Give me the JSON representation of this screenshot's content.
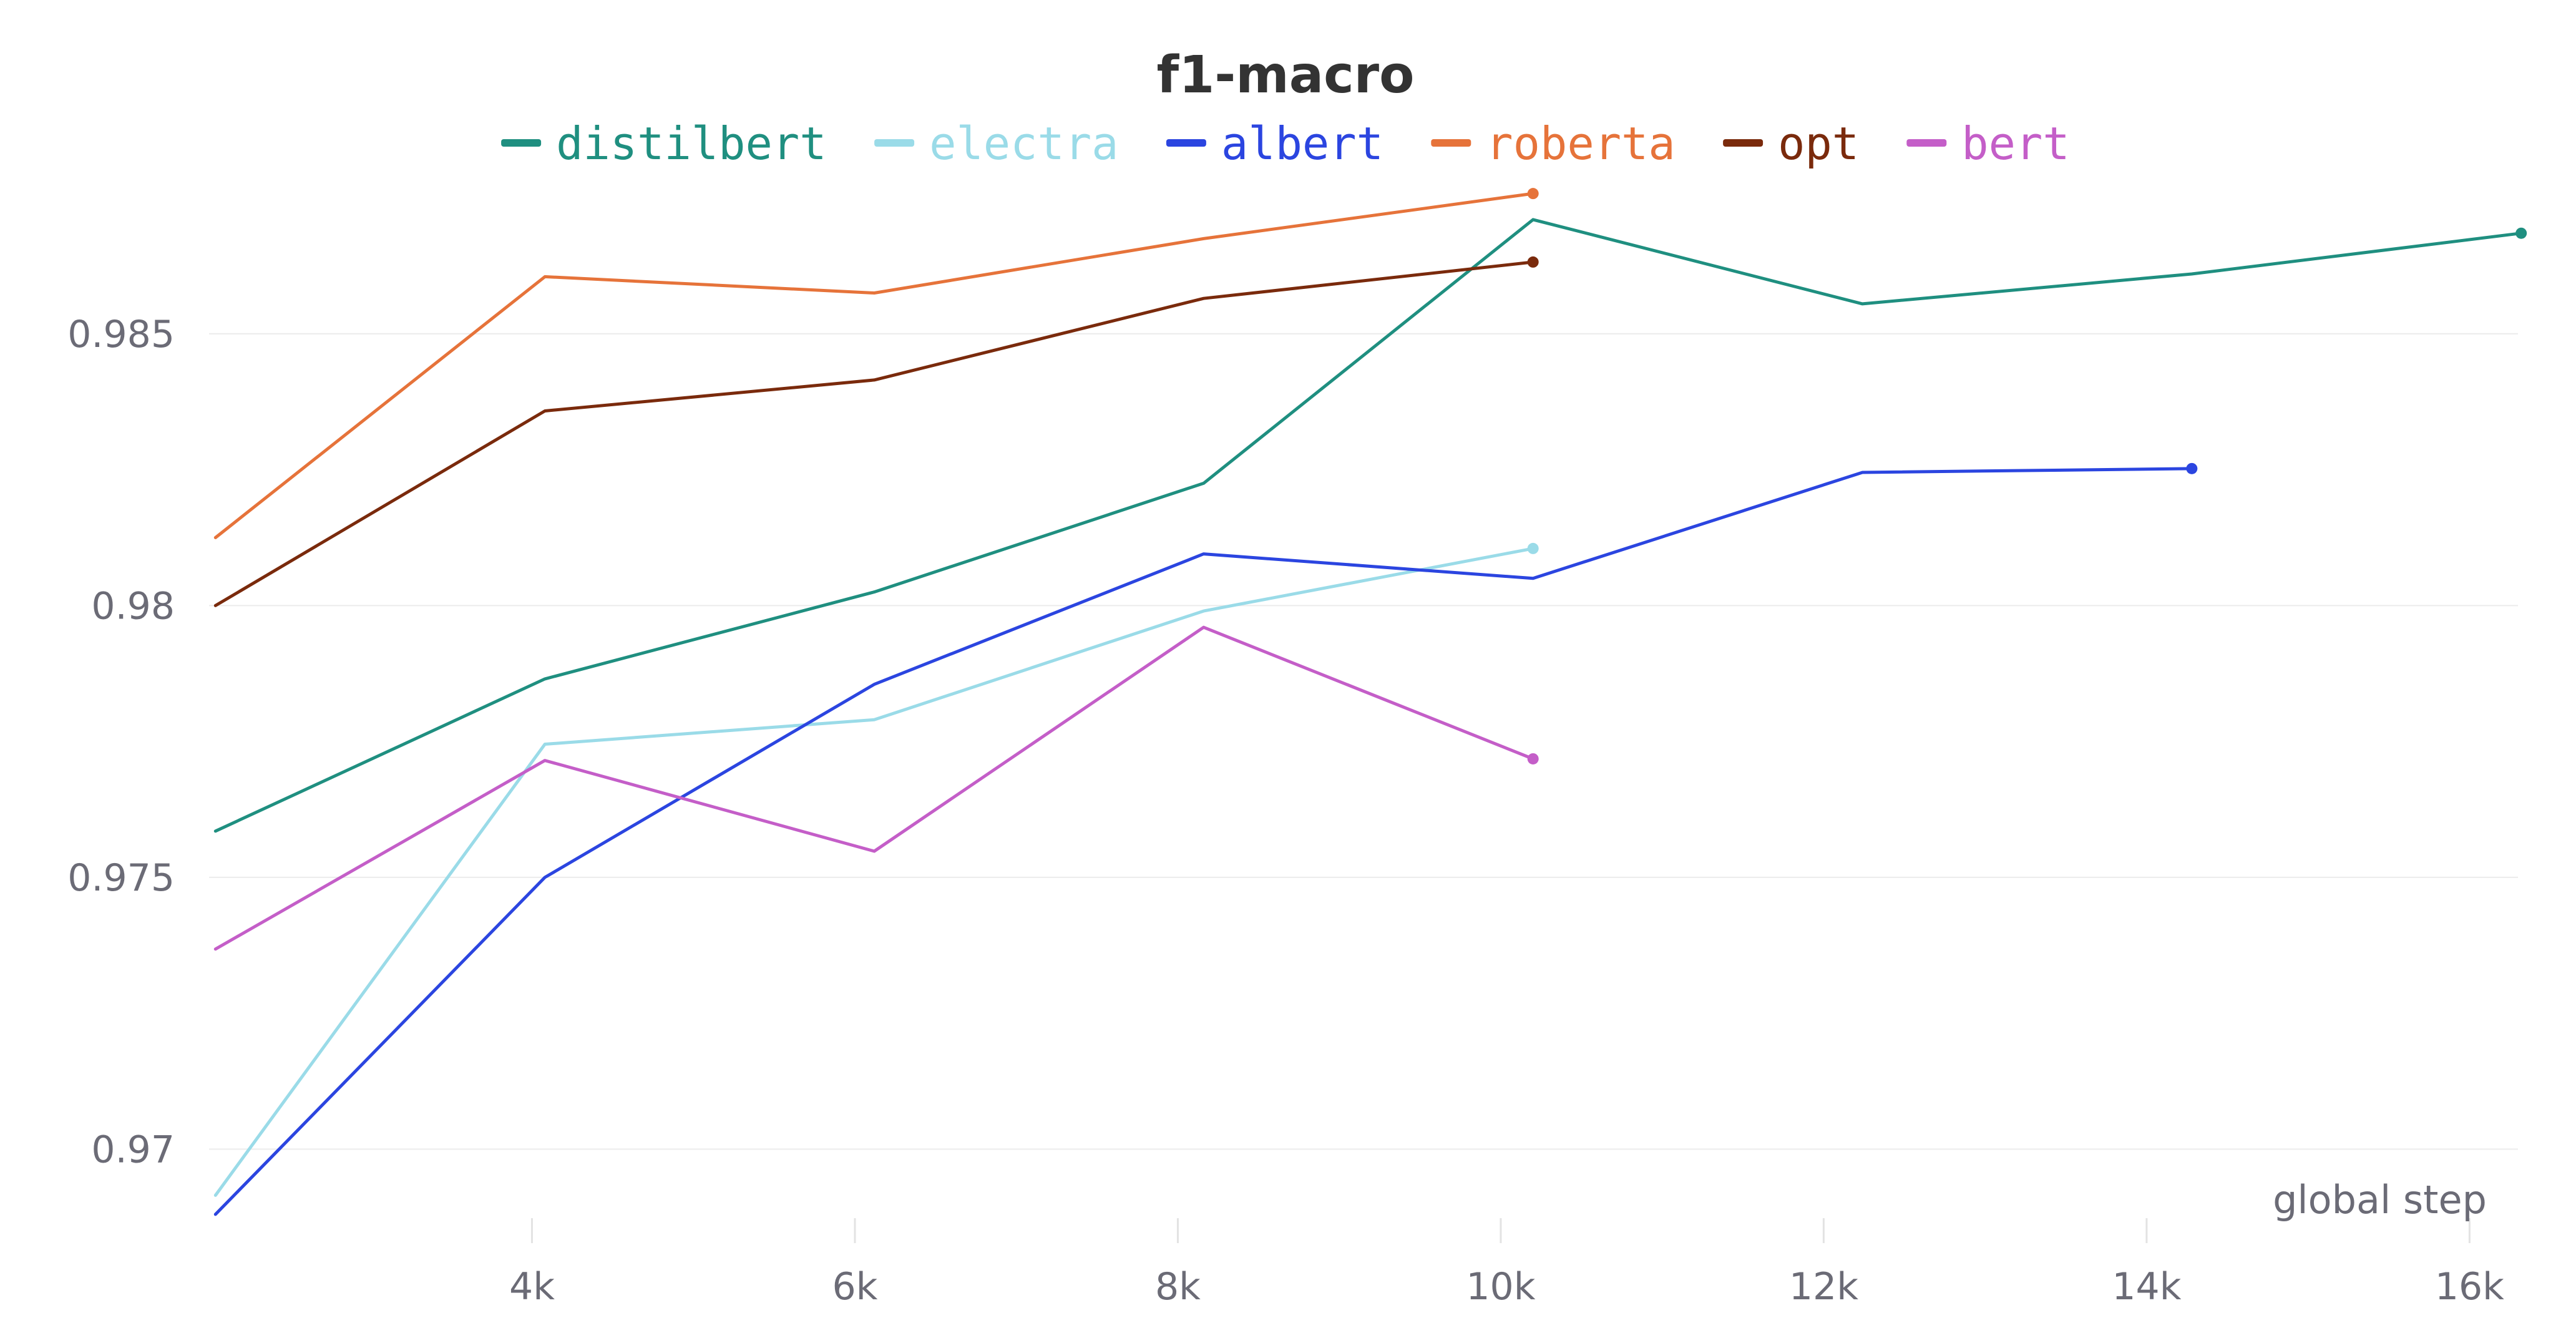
{
  "chart_data": {
    "type": "line",
    "title": "f1-macro",
    "xlabel": "global step",
    "ylabel": "",
    "xlim": [
      2000,
      16300
    ],
    "ylim": [
      0.9685,
      0.9885
    ],
    "x_ticks": [
      {
        "value": 4000,
        "label": "4k"
      },
      {
        "value": 6000,
        "label": "6k"
      },
      {
        "value": 8000,
        "label": "8k"
      },
      {
        "value": 10000,
        "label": "10k"
      },
      {
        "value": 12000,
        "label": "12k"
      },
      {
        "value": 14000,
        "label": "14k"
      },
      {
        "value": 16000,
        "label": "16k"
      }
    ],
    "y_ticks": [
      {
        "value": 0.97,
        "label": "0.97"
      },
      {
        "value": 0.975,
        "label": "0.975"
      },
      {
        "value": 0.98,
        "label": "0.98"
      },
      {
        "value": 0.985,
        "label": "0.985"
      }
    ],
    "grid": true,
    "legend_position": "top-center",
    "series": [
      {
        "name": "distilbert",
        "color": "#1f8f80",
        "x": [
          2040,
          4080,
          6120,
          8160,
          10200,
          12240,
          14280,
          16320
        ],
        "y": [
          0.97585,
          0.97865,
          0.98025,
          0.98225,
          0.9871,
          0.98555,
          0.9861,
          0.98685
        ]
      },
      {
        "name": "electra",
        "color": "#9adbe8",
        "x": [
          2040,
          4080,
          6120,
          8160,
          10200
        ],
        "y": [
          0.96915,
          0.97745,
          0.9779,
          0.9799,
          0.98105
        ]
      },
      {
        "name": "albert",
        "color": "#2b45e0",
        "x": [
          2040,
          4080,
          6120,
          8160,
          10200,
          12240,
          14280
        ],
        "y": [
          0.9688,
          0.975,
          0.97855,
          0.98095,
          0.9805,
          0.98245,
          0.98252
        ]
      },
      {
        "name": "roberta",
        "color": "#e6733a",
        "x": [
          2040,
          4080,
          6120,
          8160,
          10200
        ],
        "y": [
          0.98125,
          0.98605,
          0.98575,
          0.98675,
          0.98758
        ]
      },
      {
        "name": "opt",
        "color": "#7a2a0c",
        "x": [
          2040,
          4080,
          6120,
          8160,
          10200
        ],
        "y": [
          0.98,
          0.98358,
          0.98415,
          0.98565,
          0.98632
        ]
      },
      {
        "name": "bert",
        "color": "#c45ec8",
        "x": [
          2040,
          4080,
          6120,
          8160,
          10200
        ],
        "y": [
          0.97368,
          0.97715,
          0.97548,
          0.9796,
          0.97718
        ]
      }
    ]
  }
}
